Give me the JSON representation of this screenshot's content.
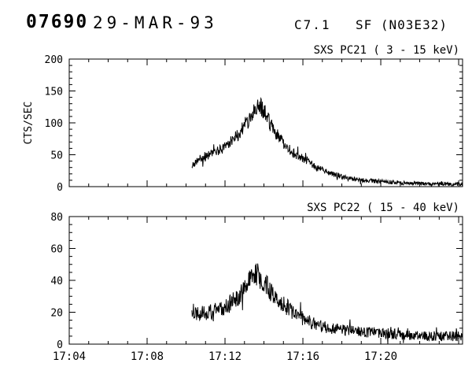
{
  "header": {
    "event_number": "07690",
    "date": "29-MAR-93",
    "class": "C7.1",
    "flare": "SF (N03E32)"
  },
  "colors": {
    "line": "#000000",
    "background": "#ffffff",
    "text": "#000000"
  },
  "chart_data": [
    {
      "type": "line",
      "title": "SXS PC21 ( 3 - 15 keV)",
      "ylabel": "CTS/SEC",
      "x_unit": "minutes after 17:00",
      "xlim_minutes": [
        4,
        24.2
      ],
      "ylim": [
        0,
        200
      ],
      "x_major_ticks": [
        4,
        8,
        12,
        16,
        20,
        24
      ],
      "x_minor_step": 1,
      "y_major_ticks": [
        0,
        50,
        100,
        150,
        200
      ],
      "y_minor_step": 10,
      "x_tick_labels": [],
      "grid": false,
      "series": [
        {
          "name": "SXS PC21 (3-15 keV)",
          "seed": 21,
          "sample_step": 0.02,
          "noise_base": 2.5,
          "noise_frac": 0.1,
          "spike_prob": 0.03,
          "spike_scale": 2.2,
          "trend": [
            [
              10.3,
              32
            ],
            [
              10.6,
              42
            ],
            [
              11.0,
              48
            ],
            [
              11.4,
              52
            ],
            [
              11.8,
              58
            ],
            [
              12.2,
              68
            ],
            [
              12.6,
              80
            ],
            [
              13.0,
              95
            ],
            [
              13.3,
              110
            ],
            [
              13.6,
              125
            ],
            [
              13.8,
              128
            ],
            [
              14.0,
              118
            ],
            [
              14.3,
              100
            ],
            [
              14.6,
              85
            ],
            [
              15.0,
              68
            ],
            [
              15.4,
              55
            ],
            [
              15.8,
              46
            ],
            [
              16.2,
              42
            ],
            [
              16.6,
              32
            ],
            [
              17.0,
              26
            ],
            [
              17.5,
              20
            ],
            [
              18.0,
              15
            ],
            [
              18.5,
              12
            ],
            [
              19.0,
              10
            ],
            [
              19.5,
              9
            ],
            [
              20.0,
              8
            ],
            [
              21.0,
              6
            ],
            [
              22.0,
              5
            ],
            [
              23.0,
              4
            ],
            [
              24.2,
              4
            ]
          ]
        }
      ]
    },
    {
      "type": "line",
      "title": "SXS PC22 ( 15 - 40 keV)",
      "ylabel": "",
      "x_unit": "minutes after 17:00",
      "xlim_minutes": [
        4,
        24.2
      ],
      "ylim": [
        0,
        80
      ],
      "x_major_ticks": [
        4,
        8,
        12,
        16,
        20,
        24
      ],
      "x_minor_step": 1,
      "y_major_ticks": [
        0,
        20,
        40,
        60,
        80
      ],
      "y_minor_step": 5,
      "x_tick_labels": [
        {
          "pos": 4,
          "label": "17:04"
        },
        {
          "pos": 8,
          "label": "17:08"
        },
        {
          "pos": 12,
          "label": "17:12"
        },
        {
          "pos": 16,
          "label": "17:16"
        },
        {
          "pos": 20,
          "label": "17:20"
        }
      ],
      "grid": false,
      "series": [
        {
          "name": "SXS PC22 (15-40 keV)",
          "seed": 22,
          "sample_step": 0.02,
          "noise_base": 2.5,
          "noise_frac": 0.12,
          "spike_prob": 0.03,
          "spike_scale": 2.2,
          "trend": [
            [
              10.3,
              20
            ],
            [
              10.8,
              20
            ],
            [
              11.3,
              20
            ],
            [
              11.8,
              22
            ],
            [
              12.2,
              25
            ],
            [
              12.6,
              29
            ],
            [
              13.0,
              35
            ],
            [
              13.3,
              40
            ],
            [
              13.6,
              44
            ],
            [
              13.8,
              42
            ],
            [
              14.1,
              37
            ],
            [
              14.5,
              31
            ],
            [
              15.0,
              25
            ],
            [
              15.5,
              20
            ],
            [
              16.0,
              16
            ],
            [
              16.5,
              13
            ],
            [
              17.0,
              11
            ],
            [
              17.5,
              10
            ],
            [
              18.0,
              9
            ],
            [
              19.0,
              8
            ],
            [
              20.0,
              7
            ],
            [
              21.0,
              6
            ],
            [
              22.0,
              5
            ],
            [
              23.0,
              5
            ],
            [
              24.2,
              5
            ]
          ]
        }
      ]
    }
  ]
}
